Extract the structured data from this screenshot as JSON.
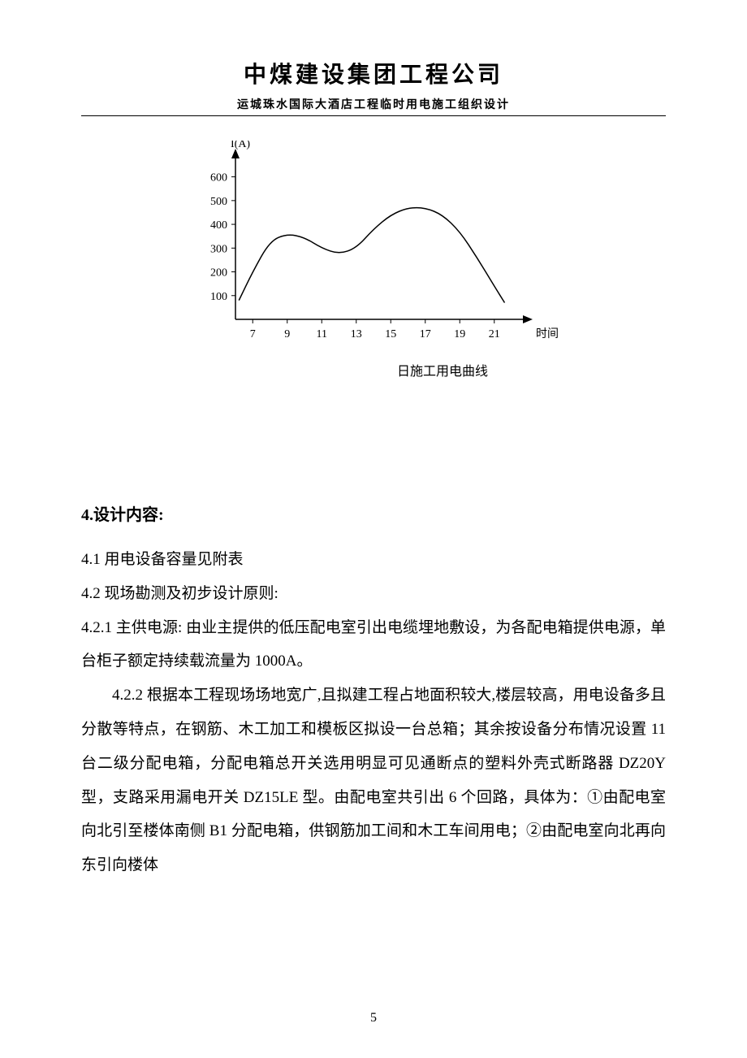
{
  "header": {
    "title": "中煤建设集团工程公司",
    "subtitle": "运城珠水国际大酒店工程临时用电施工组织设计"
  },
  "chart": {
    "type": "line",
    "y_axis_label": "I(A)",
    "x_axis_label": "时间",
    "caption": "日施工用电曲线",
    "y_ticks": [
      100,
      200,
      300,
      400,
      500,
      600
    ],
    "x_ticks": [
      7,
      9,
      11,
      13,
      15,
      17,
      19,
      21
    ],
    "y_lim": [
      0,
      650
    ],
    "x_lim": [
      6,
      22
    ],
    "curve_points": [
      {
        "x": 6.2,
        "y": 80
      },
      {
        "x": 7,
        "y": 200
      },
      {
        "x": 8,
        "y": 330
      },
      {
        "x": 9,
        "y": 360
      },
      {
        "x": 10,
        "y": 345
      },
      {
        "x": 11,
        "y": 300
      },
      {
        "x": 12,
        "y": 275
      },
      {
        "x": 13,
        "y": 300
      },
      {
        "x": 14,
        "y": 380
      },
      {
        "x": 15,
        "y": 440
      },
      {
        "x": 16,
        "y": 470
      },
      {
        "x": 17,
        "y": 470
      },
      {
        "x": 18,
        "y": 440
      },
      {
        "x": 19,
        "y": 370
      },
      {
        "x": 20,
        "y": 260
      },
      {
        "x": 21,
        "y": 140
      },
      {
        "x": 21.6,
        "y": 70
      }
    ],
    "line_color": "#000000",
    "background_color": "#ffffff",
    "title_fontsize": 14,
    "label_fontsize": 14
  },
  "content": {
    "heading": "4.设计内容:",
    "p1": "4.1 用电设备容量见附表",
    "p2": "4.2 现场勘测及初步设计原则:",
    "p3": "4.2.1 主供电源: 由业主提供的低压配电室引出电缆埋地敷设，为各配电箱提供电源，单台柜子额定持续载流量为 1000A。",
    "p4": "4.2.2 根据本工程现场场地宽广,且拟建工程占地面积较大,楼层较高，用电设备多且分散等特点，在钢筋、木工加工和模板区拟设一台总箱；其余按设备分布情况设置 11 台二级分配电箱，分配电箱总开关选用明显可见通断点的塑料外壳式断路器 DZ20Y 型，支路采用漏电开关 DZ15LE 型。由配电室共引出 6 个回路，具体为：①由配电室向北引至楼体南侧 B1 分配电箱，供钢筋加工间和木工车间用电；②由配电室向北再向东引向楼体"
  },
  "page_number": "5"
}
